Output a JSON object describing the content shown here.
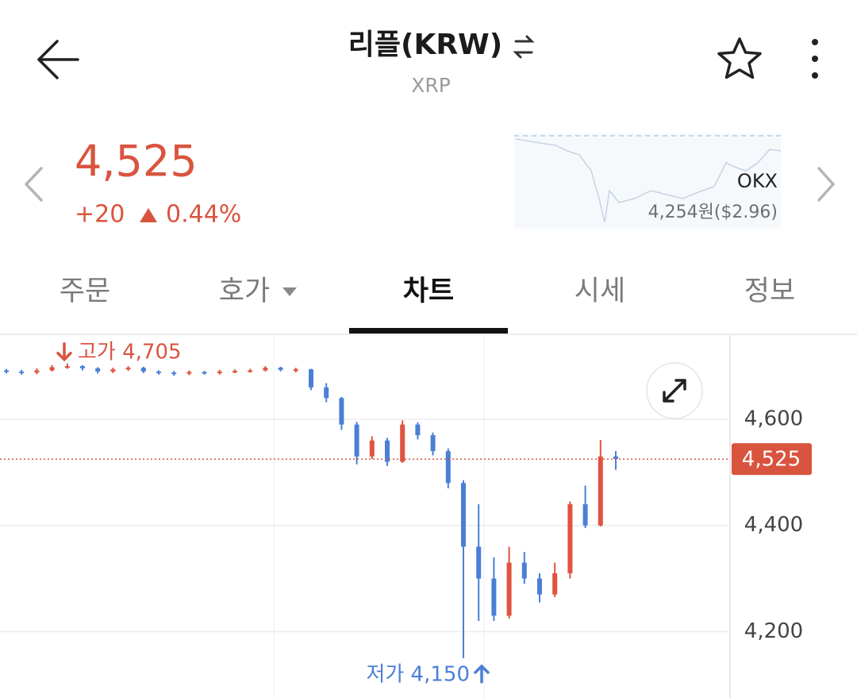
{
  "header": {
    "title": "리플(KRW)",
    "subtitle": "XRP"
  },
  "ticker": {
    "price": "4,525",
    "change": "+20",
    "change_rate": "0.44%",
    "exchange": "OKX",
    "exchange_price": "4,254원($2.96)"
  },
  "tabs": [
    "주문",
    "호가",
    "차트",
    "시세",
    "정보"
  ],
  "chart_data": {
    "type": "candlestick",
    "open": [
      4692,
      4690,
      4688,
      4692,
      4698,
      4700,
      4696,
      4690,
      4694,
      4697,
      4690,
      4688,
      4686,
      4689,
      4687,
      4690,
      4691,
      4692,
      4697,
      4693,
      4694,
      4660,
      4640,
      4590,
      4530,
      4560,
      4520,
      4590,
      4570,
      4540,
      4480,
      4360,
      4300,
      4230,
      4330,
      4300,
      4270,
      4310,
      4440,
      4400,
      4530
    ],
    "high": [
      4695,
      4693,
      4696,
      4702,
      4705,
      4702,
      4698,
      4697,
      4700,
      4699,
      4692,
      4691,
      4692,
      4691,
      4693,
      4694,
      4695,
      4700,
      4699,
      4697,
      4695,
      4668,
      4642,
      4595,
      4568,
      4565,
      4598,
      4594,
      4575,
      4545,
      4485,
      4440,
      4340,
      4360,
      4350,
      4310,
      4330,
      4445,
      4475,
      4561,
      4540
    ],
    "low": [
      4686,
      4684,
      4685,
      4690,
      4695,
      4692,
      4686,
      4687,
      4691,
      4687,
      4684,
      4682,
      4683,
      4684,
      4684,
      4687,
      4688,
      4690,
      4690,
      4688,
      4655,
      4632,
      4580,
      4515,
      4525,
      4512,
      4518,
      4562,
      4532,
      4470,
      4150,
      4220,
      4220,
      4225,
      4290,
      4255,
      4265,
      4300,
      4395,
      4398,
      4505
    ],
    "close": [
      4690,
      4688,
      4692,
      4698,
      4700,
      4696,
      4690,
      4694,
      4697,
      4690,
      4688,
      4686,
      4689,
      4687,
      4690,
      4691,
      4692,
      4697,
      4693,
      4694,
      4660,
      4640,
      4590,
      4530,
      4560,
      4520,
      4590,
      4570,
      4540,
      4480,
      4360,
      4300,
      4230,
      4330,
      4300,
      4270,
      4310,
      4440,
      4400,
      4530,
      4525
    ],
    "up_color": "#e0533f",
    "down_color": "#4b7fd6",
    "ylim": [
      4075,
      4760
    ],
    "yticks": [
      {
        "value": 4600,
        "label": "4,600"
      },
      {
        "value": 4400,
        "label": "4,400"
      },
      {
        "value": 4200,
        "label": "4,200"
      }
    ],
    "grid": true,
    "current": {
      "value": 4525,
      "label": "4,525"
    },
    "high_marker": {
      "value": 4705,
      "label": "고가 4,705"
    },
    "low_marker": {
      "value": 4150,
      "label": "저가 4,150"
    }
  }
}
